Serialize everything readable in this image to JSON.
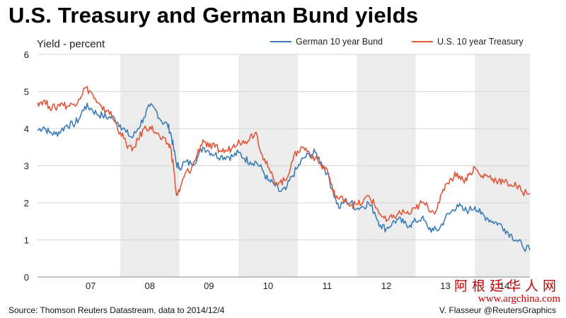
{
  "title": "U.S. Treasury and German Bund yields",
  "footer": {
    "source": "Source: Thomson Reuters Datastream, data to 2014/12/4",
    "credit": "V. Flasseur @ReutersGraphics"
  },
  "watermark": {
    "cn": "阿根廷华人网",
    "url": "www.argchina.com"
  },
  "chart_data": {
    "type": "line",
    "title": "U.S. Treasury and German Bund yields",
    "ylabel": "Yield - percent",
    "xlabel": "",
    "ylim": [
      0,
      6
    ],
    "yticks": [
      0,
      1,
      2,
      3,
      4,
      5,
      6
    ],
    "xlim": [
      2006.6,
      2014.93
    ],
    "xticks": [
      {
        "label": "07",
        "year": 2007
      },
      {
        "label": "08",
        "year": 2008
      },
      {
        "label": "09",
        "year": 2009
      },
      {
        "label": "10",
        "year": 2010
      },
      {
        "label": "11",
        "year": 2011
      },
      {
        "label": "12",
        "year": 2012
      },
      {
        "label": "13",
        "year": 2013
      },
      {
        "label": "14",
        "year": 2014
      }
    ],
    "grid": true,
    "legend_position": "top-right",
    "shaded_years": [
      2008,
      2010,
      2012,
      2014
    ],
    "series": [
      {
        "name": "German 10 year Bund",
        "color": "#3b7cb8",
        "points": [
          [
            2006.6,
            3.95
          ],
          [
            2006.7,
            4.05
          ],
          [
            2006.8,
            3.9
          ],
          [
            2006.9,
            3.85
          ],
          [
            2007.0,
            3.95
          ],
          [
            2007.1,
            4.1
          ],
          [
            2007.2,
            4.1
          ],
          [
            2007.3,
            4.25
          ],
          [
            2007.4,
            4.6
          ],
          [
            2007.5,
            4.55
          ],
          [
            2007.6,
            4.4
          ],
          [
            2007.7,
            4.35
          ],
          [
            2007.8,
            4.3
          ],
          [
            2007.9,
            4.3
          ],
          [
            2008.0,
            4.1
          ],
          [
            2008.1,
            3.9
          ],
          [
            2008.2,
            3.75
          ],
          [
            2008.3,
            4.0
          ],
          [
            2008.4,
            4.3
          ],
          [
            2008.5,
            4.6
          ],
          [
            2008.6,
            4.5
          ],
          [
            2008.7,
            4.2
          ],
          [
            2008.8,
            4.1
          ],
          [
            2008.85,
            3.9
          ],
          [
            2008.9,
            3.5
          ],
          [
            2008.95,
            3.05
          ],
          [
            2009.0,
            2.95
          ],
          [
            2009.1,
            3.1
          ],
          [
            2009.2,
            3.05
          ],
          [
            2009.3,
            3.2
          ],
          [
            2009.4,
            3.5
          ],
          [
            2009.5,
            3.4
          ],
          [
            2009.6,
            3.3
          ],
          [
            2009.7,
            3.25
          ],
          [
            2009.8,
            3.25
          ],
          [
            2009.9,
            3.25
          ],
          [
            2010.0,
            3.35
          ],
          [
            2010.1,
            3.2
          ],
          [
            2010.2,
            3.1
          ],
          [
            2010.3,
            3.1
          ],
          [
            2010.4,
            2.9
          ],
          [
            2010.5,
            2.6
          ],
          [
            2010.6,
            2.5
          ],
          [
            2010.7,
            2.3
          ],
          [
            2010.8,
            2.35
          ],
          [
            2010.9,
            2.7
          ],
          [
            2011.0,
            2.95
          ],
          [
            2011.1,
            3.2
          ],
          [
            2011.2,
            3.3
          ],
          [
            2011.3,
            3.35
          ],
          [
            2011.4,
            3.1
          ],
          [
            2011.5,
            2.8
          ],
          [
            2011.6,
            2.3
          ],
          [
            2011.7,
            1.85
          ],
          [
            2011.8,
            2.05
          ],
          [
            2011.9,
            2.0
          ],
          [
            2012.0,
            1.85
          ],
          [
            2012.1,
            1.9
          ],
          [
            2012.2,
            2.0
          ],
          [
            2012.3,
            1.75
          ],
          [
            2012.4,
            1.4
          ],
          [
            2012.5,
            1.3
          ],
          [
            2012.6,
            1.45
          ],
          [
            2012.7,
            1.55
          ],
          [
            2012.8,
            1.45
          ],
          [
            2012.9,
            1.4
          ],
          [
            2013.0,
            1.5
          ],
          [
            2013.1,
            1.6
          ],
          [
            2013.2,
            1.35
          ],
          [
            2013.3,
            1.25
          ],
          [
            2013.4,
            1.3
          ],
          [
            2013.5,
            1.6
          ],
          [
            2013.6,
            1.75
          ],
          [
            2013.7,
            1.95
          ],
          [
            2013.8,
            1.8
          ],
          [
            2013.9,
            1.8
          ],
          [
            2014.0,
            1.9
          ],
          [
            2014.1,
            1.7
          ],
          [
            2014.2,
            1.6
          ],
          [
            2014.3,
            1.5
          ],
          [
            2014.4,
            1.45
          ],
          [
            2014.5,
            1.3
          ],
          [
            2014.6,
            1.15
          ],
          [
            2014.7,
            1.0
          ],
          [
            2014.8,
            0.85
          ],
          [
            2014.93,
            0.72
          ]
        ]
      },
      {
        "name": "U.S. 10 year Treasury",
        "color": "#e0573a",
        "points": [
          [
            2006.6,
            4.7
          ],
          [
            2006.7,
            4.75
          ],
          [
            2006.8,
            4.6
          ],
          [
            2006.9,
            4.55
          ],
          [
            2007.0,
            4.7
          ],
          [
            2007.1,
            4.6
          ],
          [
            2007.2,
            4.65
          ],
          [
            2007.3,
            4.8
          ],
          [
            2007.4,
            5.1
          ],
          [
            2007.5,
            5.0
          ],
          [
            2007.6,
            4.7
          ],
          [
            2007.7,
            4.5
          ],
          [
            2007.8,
            4.5
          ],
          [
            2007.9,
            4.2
          ],
          [
            2008.0,
            3.9
          ],
          [
            2008.1,
            3.6
          ],
          [
            2008.2,
            3.4
          ],
          [
            2008.3,
            3.7
          ],
          [
            2008.4,
            4.0
          ],
          [
            2008.5,
            4.05
          ],
          [
            2008.6,
            3.9
          ],
          [
            2008.7,
            3.7
          ],
          [
            2008.8,
            3.6
          ],
          [
            2008.85,
            3.5
          ],
          [
            2008.9,
            3.0
          ],
          [
            2008.95,
            2.2
          ],
          [
            2009.0,
            2.3
          ],
          [
            2009.1,
            2.8
          ],
          [
            2009.2,
            2.9
          ],
          [
            2009.3,
            3.3
          ],
          [
            2009.4,
            3.7
          ],
          [
            2009.5,
            3.5
          ],
          [
            2009.6,
            3.5
          ],
          [
            2009.7,
            3.4
          ],
          [
            2009.8,
            3.4
          ],
          [
            2009.9,
            3.5
          ],
          [
            2010.0,
            3.7
          ],
          [
            2010.1,
            3.6
          ],
          [
            2010.2,
            3.8
          ],
          [
            2010.3,
            3.9
          ],
          [
            2010.4,
            3.3
          ],
          [
            2010.5,
            2.95
          ],
          [
            2010.6,
            2.6
          ],
          [
            2010.7,
            2.55
          ],
          [
            2010.8,
            2.6
          ],
          [
            2010.9,
            3.1
          ],
          [
            2011.0,
            3.4
          ],
          [
            2011.1,
            3.5
          ],
          [
            2011.2,
            3.35
          ],
          [
            2011.3,
            3.2
          ],
          [
            2011.4,
            3.0
          ],
          [
            2011.5,
            2.9
          ],
          [
            2011.6,
            2.3
          ],
          [
            2011.7,
            2.1
          ],
          [
            2011.8,
            2.1
          ],
          [
            2011.9,
            1.95
          ],
          [
            2012.0,
            1.95
          ],
          [
            2012.1,
            2.0
          ],
          [
            2012.2,
            2.2
          ],
          [
            2012.3,
            1.95
          ],
          [
            2012.4,
            1.7
          ],
          [
            2012.5,
            1.5
          ],
          [
            2012.6,
            1.6
          ],
          [
            2012.7,
            1.7
          ],
          [
            2012.8,
            1.75
          ],
          [
            2012.9,
            1.7
          ],
          [
            2013.0,
            1.85
          ],
          [
            2013.1,
            2.0
          ],
          [
            2013.2,
            1.9
          ],
          [
            2013.3,
            1.75
          ],
          [
            2013.4,
            2.0
          ],
          [
            2013.5,
            2.5
          ],
          [
            2013.6,
            2.65
          ],
          [
            2013.7,
            2.8
          ],
          [
            2013.8,
            2.6
          ],
          [
            2013.9,
            2.75
          ],
          [
            2014.0,
            2.95
          ],
          [
            2014.1,
            2.7
          ],
          [
            2014.2,
            2.75
          ],
          [
            2014.3,
            2.65
          ],
          [
            2014.4,
            2.6
          ],
          [
            2014.5,
            2.55
          ],
          [
            2014.6,
            2.5
          ],
          [
            2014.7,
            2.45
          ],
          [
            2014.8,
            2.3
          ],
          [
            2014.93,
            2.25
          ]
        ]
      }
    ]
  }
}
